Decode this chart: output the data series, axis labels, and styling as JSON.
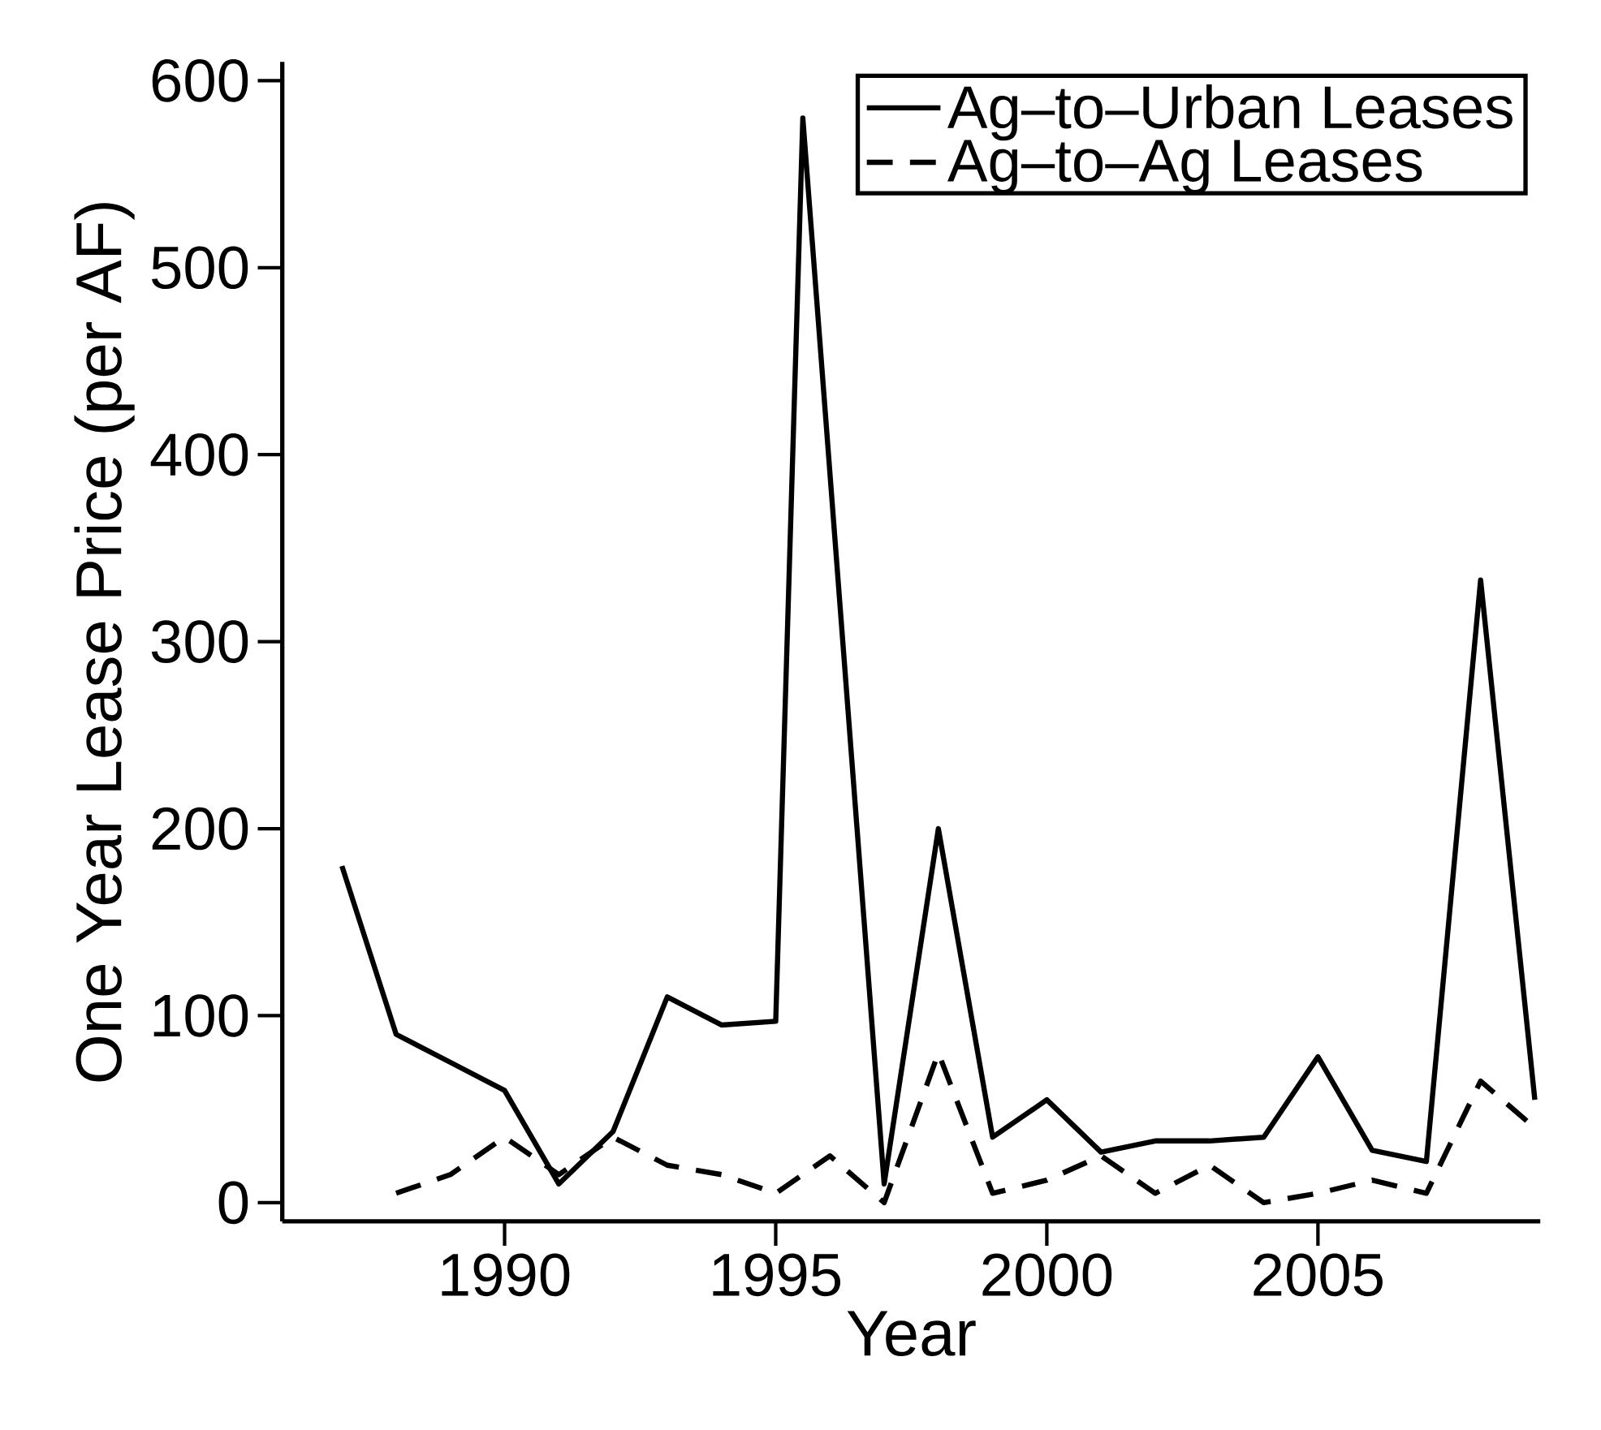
{
  "chart_data": {
    "type": "line",
    "xlabel": "Year",
    "ylabel": "One Year Lease Price (per AF)",
    "xlim": [
      1985.9,
      2009.1
    ],
    "xticks": [
      1990,
      1995,
      2000,
      2005
    ],
    "ylim": [
      -10,
      610
    ],
    "yticks": [
      0,
      100,
      200,
      300,
      400,
      500,
      600
    ],
    "legend": "top right",
    "grid": false,
    "marker": "none",
    "series": [
      {
        "name": "Ag–to–Urban Leases",
        "color": "#000000",
        "line_style": "solid",
        "x": [
          1987,
          1988,
          1989,
          1990,
          1991,
          1992,
          1993,
          1994,
          1995,
          1995.5,
          1997,
          1998,
          1999,
          2000,
          2001,
          2002,
          2003,
          2004,
          2005,
          2006,
          2007,
          2008,
          2009
        ],
        "values": [
          180,
          90,
          75,
          60,
          10,
          38,
          110,
          95,
          97,
          580,
          10,
          200,
          35,
          55,
          27,
          33,
          33,
          35,
          78,
          28,
          22,
          333,
          55
        ]
      },
      {
        "name": "Ag–to–Ag Leases",
        "color": "#000000",
        "line_style": "dashed",
        "x": [
          1988,
          1989,
          1990,
          1991,
          1992,
          1993,
          1994,
          1995,
          1996,
          1997,
          1998,
          1999,
          2000,
          2001,
          2002,
          2003,
          2004,
          2005,
          2006,
          2007,
          2008,
          2009
        ],
        "values": [
          5,
          15,
          35,
          15,
          35,
          20,
          15,
          5,
          25,
          0,
          80,
          5,
          12,
          25,
          5,
          20,
          0,
          5,
          12,
          5,
          65,
          40
        ]
      }
    ]
  }
}
